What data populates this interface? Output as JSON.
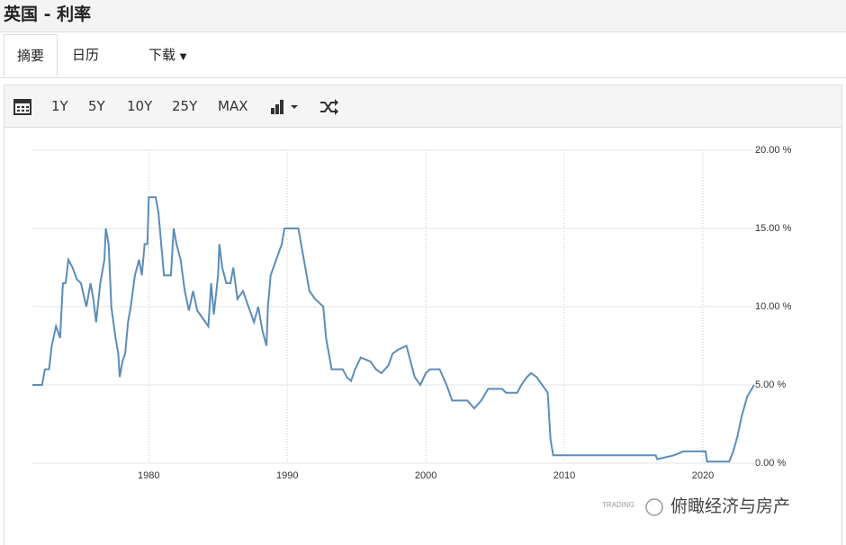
{
  "header": {
    "title": "英国 - 利率"
  },
  "tabs": [
    "摘要",
    "日历",
    "下载"
  ],
  "toolbar": [
    "1Y",
    "5Y",
    "10Y",
    "25Y",
    "MAX"
  ],
  "watermark": [
    "TRADING",
    "俯瞰经济与房产"
  ],
  "chart_data": {
    "type": "line",
    "color": "#5b8db8",
    "grid": true,
    "xlim": [
      1971.6,
      2023.9
    ],
    "xticks": [
      1980,
      1990,
      2000,
      2010,
      2020
    ],
    "ylim": [
      0,
      20
    ],
    "yticks": [
      {
        "value": 0,
        "label": "0.00 %"
      },
      {
        "value": 5,
        "label": "5.00 %"
      },
      {
        "value": 10,
        "label": "10.00 %"
      },
      {
        "value": 15,
        "label": "15.00 %"
      },
      {
        "value": 20,
        "label": "20.00 %"
      }
    ],
    "x": [
      1971.6,
      1972.3,
      1972.5,
      1972.8,
      1973.0,
      1973.3,
      1973.6,
      1973.8,
      1974.0,
      1974.2,
      1974.5,
      1974.8,
      1975.1,
      1975.5,
      1975.8,
      1976.0,
      1976.2,
      1976.5,
      1976.8,
      1976.9,
      1977.1,
      1977.3,
      1977.6,
      1977.8,
      1977.9,
      1978.1,
      1978.3,
      1978.5,
      1978.7,
      1979.0,
      1979.3,
      1979.5,
      1979.7,
      1979.9,
      1980.0,
      1980.5,
      1980.7,
      1980.9,
      1981.1,
      1981.6,
      1981.8,
      1982.0,
      1982.3,
      1982.6,
      1982.9,
      1983.2,
      1983.5,
      1983.9,
      1984.3,
      1984.5,
      1984.7,
      1985.0,
      1985.1,
      1985.3,
      1985.6,
      1985.9,
      1986.1,
      1986.4,
      1986.8,
      1987.2,
      1987.6,
      1987.9,
      1988.2,
      1988.5,
      1988.6,
      1988.8,
      1989.2,
      1989.6,
      1989.8,
      1990.8,
      1991.0,
      1991.3,
      1991.6,
      1992.0,
      1992.6,
      1992.8,
      1993.0,
      1993.2,
      1994.0,
      1994.3,
      1994.6,
      1994.9,
      1995.3,
      1996.0,
      1996.4,
      1996.8,
      1997.3,
      1997.6,
      1998.0,
      1998.6,
      1998.9,
      1999.2,
      1999.6,
      2000.0,
      2000.3,
      2001.0,
      2001.5,
      2001.9,
      2003.0,
      2003.5,
      2004.0,
      2004.5,
      2005.5,
      2005.8,
      2006.6,
      2006.9,
      2007.3,
      2007.6,
      2008.0,
      2008.4,
      2008.8,
      2009.0,
      2009.2,
      2016.6,
      2016.7,
      2017.9,
      2018.6,
      2020.2,
      2020.3,
      2021.9,
      2022.2,
      2022.5,
      2022.8,
      2023.2,
      2023.7
    ],
    "values": [
      5,
      5,
      6,
      6,
      7.5,
      8.75,
      8,
      11.5,
      11.5,
      13,
      12.5,
      11.75,
      11.5,
      10,
      11.5,
      10.5,
      9,
      11.5,
      13,
      15,
      14,
      10,
      8,
      7,
      5.5,
      6.5,
      7,
      9,
      10,
      12,
      13,
      12,
      14,
      14,
      17,
      17,
      16,
      14,
      12,
      12,
      15,
      14,
      13,
      11,
      9.75,
      11,
      9.75,
      9.25,
      8.75,
      11.5,
      9.5,
      12,
      14,
      12.5,
      11.5,
      11.5,
      12.5,
      10.5,
      11,
      10,
      9,
      10,
      8.5,
      7.5,
      10,
      12,
      13,
      14,
      15,
      15,
      14,
      12.5,
      11,
      10.5,
      10,
      8,
      7,
      6,
      6,
      5.5,
      5.25,
      6,
      6.75,
      6.5,
      6,
      5.75,
      6.25,
      7,
      7.25,
      7.5,
      6.5,
      5.5,
      5,
      5.75,
      6,
      6,
      5,
      4,
      4,
      3.5,
      4,
      4.75,
      4.75,
      4.5,
      4.5,
      5,
      5.5,
      5.75,
      5.5,
      5,
      4.5,
      1.5,
      0.5,
      0.5,
      0.25,
      0.5,
      0.75,
      0.75,
      0.1,
      0.1,
      0.75,
      1.75,
      3,
      4.25,
      5
    ]
  }
}
